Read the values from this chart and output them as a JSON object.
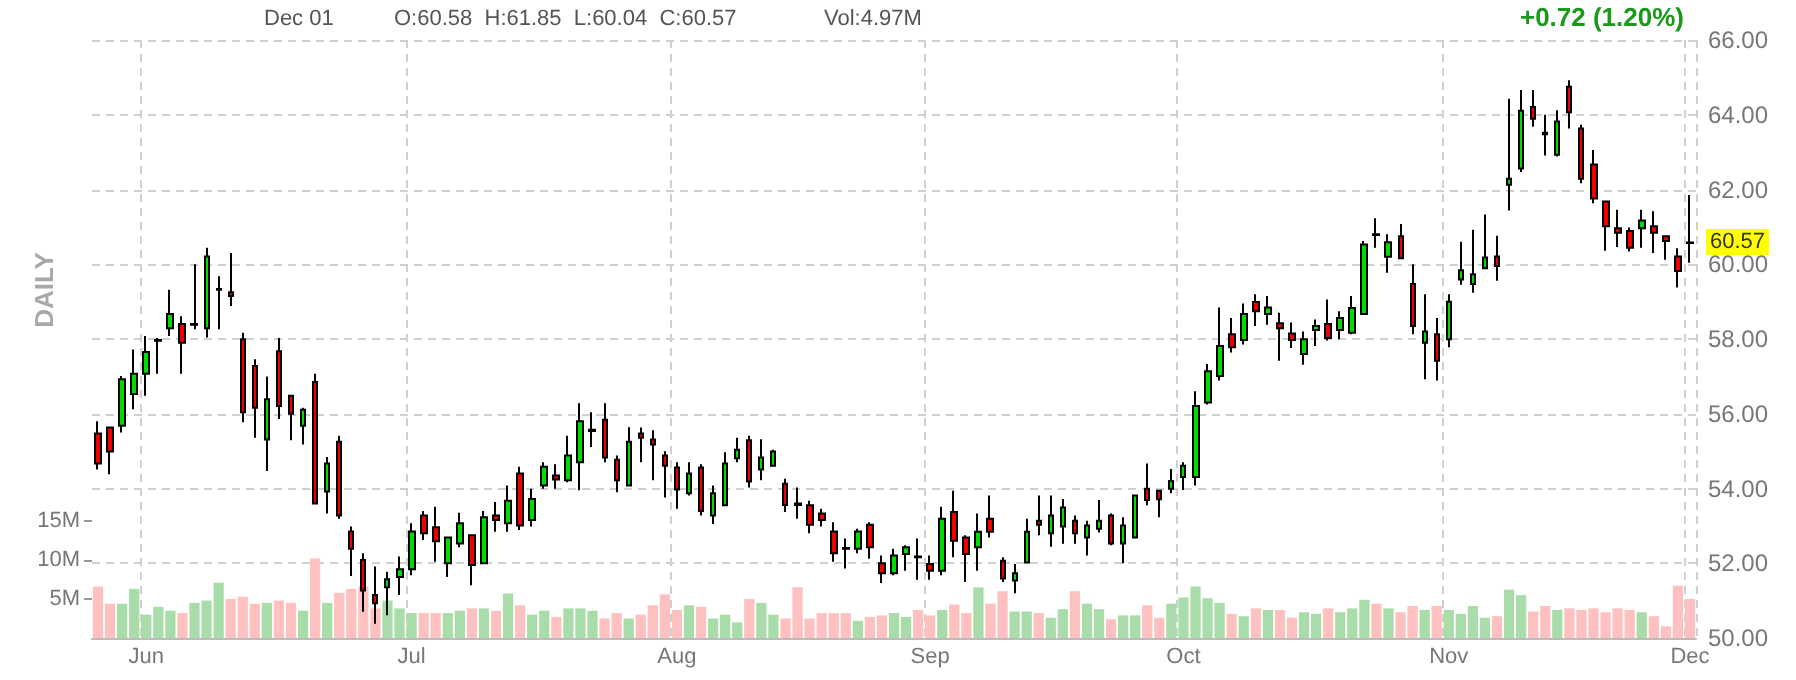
{
  "chart_data": {
    "type": "candlestick",
    "categories": [
      null,
      null,
      null,
      null,
      "Jun",
      null,
      null,
      null,
      null,
      null,
      null,
      null,
      null,
      null,
      null,
      null,
      null,
      null,
      null,
      null,
      null,
      null,
      null,
      null,
      null,
      null,
      "Jul",
      null,
      null,
      null,
      null,
      null,
      null,
      null,
      null,
      null,
      null,
      null,
      null,
      null,
      null,
      null,
      null,
      null,
      null,
      null,
      null,
      null,
      "Aug",
      null,
      null,
      null,
      null,
      null,
      null,
      null,
      null,
      null,
      null,
      null,
      null,
      null,
      null,
      null,
      null,
      null,
      null,
      null,
      null,
      "Sep",
      null,
      null,
      null,
      null,
      null,
      null,
      null,
      null,
      null,
      null,
      null,
      null,
      null,
      null,
      null,
      null,
      null,
      null,
      null,
      null,
      "Oct",
      null,
      null,
      null,
      null,
      null,
      null,
      null,
      null,
      null,
      null,
      null,
      null,
      null,
      null,
      null,
      null,
      null,
      null,
      null,
      null,
      null,
      "Nov",
      null,
      null,
      null,
      null,
      null,
      null,
      null,
      null,
      null,
      null,
      null,
      null,
      null,
      null,
      null,
      null,
      null,
      null,
      null,
      "Dec"
    ],
    "series": [
      {
        "type": "candlestick",
        "ohlc": [
          [
            55.47,
            55.8,
            54.51,
            54.67
          ],
          [
            55.63,
            55.63,
            54.38,
            54.99
          ],
          [
            55.68,
            57.01,
            55.5,
            56.92
          ],
          [
            56.53,
            57.72,
            56.12,
            57.07
          ],
          [
            57.07,
            58.08,
            56.48,
            57.65
          ],
          [
            57.95,
            58.03,
            57.07,
            57.97
          ],
          [
            58.29,
            59.32,
            58.08,
            58.67
          ],
          [
            58.4,
            58.61,
            57.07,
            57.9
          ],
          [
            58.38,
            60,
            58.26,
            58.4
          ],
          [
            58.29,
            60.44,
            58.04,
            60.21
          ],
          [
            59.32,
            59.68,
            58.26,
            59.34
          ],
          [
            59.25,
            60.3,
            58.88,
            59.15
          ],
          [
            57.99,
            58.17,
            55.77,
            56.04
          ],
          [
            57.28,
            57.46,
            55.36,
            56.16
          ],
          [
            55.31,
            57,
            54.47,
            56.39
          ],
          [
            57.67,
            58.03,
            55.86,
            56.21
          ],
          [
            56.48,
            56.48,
            55.29,
            56
          ],
          [
            55.68,
            56.16,
            55.18,
            56.11
          ],
          [
            56.85,
            57.07,
            53.6,
            53.6
          ],
          [
            53.92,
            54.84,
            53.33,
            54.67
          ],
          [
            55.25,
            55.41,
            53.19,
            53.28
          ],
          [
            52.85,
            52.98,
            51.66,
            52.39
          ],
          [
            52.09,
            52.27,
            50.7,
            51.27
          ],
          [
            51.15,
            51.91,
            50.38,
            50.93
          ],
          [
            51.36,
            51.77,
            50.61,
            51.57
          ],
          [
            51.63,
            52.18,
            51.15,
            51.84
          ],
          [
            51.84,
            53.07,
            51.68,
            52.85
          ],
          [
            53.28,
            53.4,
            52.62,
            52.8
          ],
          [
            52.96,
            53.51,
            52.04,
            52.59
          ],
          [
            52,
            52.69,
            51.63,
            52.69
          ],
          [
            52.53,
            53.35,
            52.43,
            53.07
          ],
          [
            52.75,
            52.75,
            51.41,
            51.95
          ],
          [
            52,
            53.4,
            52,
            53.23
          ],
          [
            53.28,
            53.64,
            52.84,
            53.16
          ],
          [
            53.07,
            54.08,
            52.84,
            53.67
          ],
          [
            54.4,
            54.58,
            52.89,
            53.01
          ],
          [
            53.16,
            53.99,
            52.98,
            53.72
          ],
          [
            54.08,
            54.7,
            53.99,
            54.58
          ],
          [
            54.35,
            54.65,
            53.99,
            54.24
          ],
          [
            54.22,
            55.41,
            54.17,
            54.88
          ],
          [
            54.7,
            56.28,
            53.95,
            55.8
          ],
          [
            55.54,
            56.04,
            55.11,
            55.57
          ],
          [
            55.84,
            56.28,
            54.7,
            54.83
          ],
          [
            54.77,
            54.88,
            53.9,
            54.22
          ],
          [
            54.08,
            55.64,
            54.08,
            55.25
          ],
          [
            55.47,
            55.63,
            54.7,
            55.36
          ],
          [
            55.31,
            55.56,
            54.22,
            55.18
          ],
          [
            54.88,
            55,
            53.76,
            54.61
          ],
          [
            54.56,
            54.7,
            53.46,
            53.97
          ],
          [
            53.87,
            54.7,
            53.81,
            54.4
          ],
          [
            54.56,
            54.65,
            53.28,
            53.4
          ],
          [
            53.28,
            54.08,
            53.05,
            53.87
          ],
          [
            53.55,
            54.97,
            53.55,
            54.67
          ],
          [
            54.81,
            55.36,
            54.7,
            55.04
          ],
          [
            55.29,
            55.41,
            54.03,
            54.19
          ],
          [
            54.51,
            55.32,
            54.22,
            54.83
          ],
          [
            54.61,
            55.04,
            54.61,
            54.99
          ],
          [
            54.13,
            54.26,
            53.37,
            53.56
          ],
          [
            53.6,
            54.03,
            53.19,
            53.56
          ],
          [
            53.55,
            53.67,
            52.8,
            53.03
          ],
          [
            53.33,
            53.46,
            52.98,
            53.16
          ],
          [
            52.85,
            53.1,
            52.04,
            52.27
          ],
          [
            52.41,
            52.66,
            51.86,
            52.39
          ],
          [
            52.39,
            52.92,
            52.27,
            52.85
          ],
          [
            53.03,
            53.1,
            52.12,
            52.43
          ],
          [
            52,
            52.21,
            51.47,
            51.73
          ],
          [
            51.73,
            52.39,
            51.68,
            52.21
          ],
          [
            52.25,
            52.48,
            51.8,
            52.43
          ],
          [
            52.18,
            52.66,
            51.56,
            52.16
          ],
          [
            51.98,
            52.21,
            51.56,
            51.8
          ],
          [
            51.8,
            53.51,
            51.68,
            53.19
          ],
          [
            53.37,
            53.94,
            52.16,
            52.6
          ],
          [
            52.69,
            52.75,
            51.5,
            52.25
          ],
          [
            52.43,
            53.33,
            51.8,
            52.84
          ],
          [
            53.19,
            53.81,
            52.69,
            52.84
          ],
          [
            52.07,
            52.16,
            51.5,
            51.59
          ],
          [
            51.54,
            51.98,
            51.2,
            51.73
          ],
          [
            52.02,
            53.19,
            52.02,
            52.84
          ],
          [
            53.14,
            53.81,
            52.75,
            53.03
          ],
          [
            52.8,
            53.81,
            52.44,
            53.28
          ],
          [
            52.98,
            53.72,
            52.52,
            53.49
          ],
          [
            53.14,
            53.28,
            52.52,
            52.8
          ],
          [
            52.69,
            53.14,
            52.21,
            53.01
          ],
          [
            52.92,
            53.69,
            52.82,
            53.14
          ],
          [
            53.28,
            53.33,
            52.48,
            52.53
          ],
          [
            52.53,
            53.23,
            52,
            53.01
          ],
          [
            52.69,
            53.81,
            52.66,
            53.81
          ],
          [
            53.99,
            54.67,
            53.55,
            53.69
          ],
          [
            53.94,
            53.94,
            53.23,
            53.71
          ],
          [
            53.99,
            54.52,
            53.87,
            54.2
          ],
          [
            54.31,
            54.7,
            53.96,
            54.61
          ],
          [
            54.31,
            56.6,
            54.08,
            56.21
          ],
          [
            56.3,
            57.33,
            56.25,
            57.14
          ],
          [
            57.01,
            58.84,
            56.89,
            57.81
          ],
          [
            58.13,
            58.56,
            57.64,
            57.78
          ],
          [
            57.97,
            58.95,
            57.85,
            58.67
          ],
          [
            58.99,
            59.2,
            58.35,
            58.74
          ],
          [
            58.67,
            59.15,
            58.38,
            58.84
          ],
          [
            58.42,
            58.7,
            57.42,
            58.29
          ],
          [
            58.15,
            58.44,
            57.76,
            57.97
          ],
          [
            57.6,
            58.2,
            57.31,
            57.99
          ],
          [
            58.24,
            58.52,
            57.81,
            58.35
          ],
          [
            58.4,
            59.06,
            57.96,
            58.03
          ],
          [
            58.24,
            58.74,
            57.99,
            58.56
          ],
          [
            58.17,
            59.15,
            58.13,
            58.83
          ],
          [
            58.67,
            60.62,
            58.67,
            60.53
          ],
          [
            60.8,
            61.23,
            60.44,
            60.78
          ],
          [
            60.2,
            60.8,
            59.77,
            60.59
          ],
          [
            60.75,
            61.08,
            60.16,
            60.16
          ],
          [
            59.47,
            60,
            58.13,
            58.35
          ],
          [
            57.9,
            59.2,
            56.92,
            58.2
          ],
          [
            58.13,
            58.56,
            56.89,
            57.42
          ],
          [
            57.99,
            59.2,
            57.78,
            59
          ],
          [
            59.59,
            60.6,
            59.45,
            59.84
          ],
          [
            59.47,
            60.92,
            59.24,
            59.73
          ],
          [
            59.89,
            61.33,
            59.89,
            60.18
          ],
          [
            60.21,
            60.76,
            59.56,
            59.95
          ],
          [
            62.13,
            64.43,
            61.44,
            62.29
          ],
          [
            62.56,
            64.66,
            62.47,
            64.11
          ],
          [
            64.21,
            64.66,
            63.68,
            63.89
          ],
          [
            63.52,
            64,
            62.91,
            63.48
          ],
          [
            62.93,
            64.12,
            62.88,
            63.82
          ],
          [
            64.75,
            64.92,
            63.63,
            64.07
          ],
          [
            63.63,
            63.73,
            62.17,
            62.29
          ],
          [
            62.67,
            63.06,
            61.63,
            61.76
          ],
          [
            61.68,
            61.68,
            60.36,
            61.02
          ],
          [
            60.96,
            61.46,
            60.46,
            60.84
          ],
          [
            60.89,
            60.98,
            60.34,
            60.44
          ],
          [
            60.96,
            61.46,
            60.44,
            61.17
          ],
          [
            61.02,
            61.42,
            60.3,
            60.84
          ],
          [
            60.75,
            60.75,
            60.12,
            60.62
          ],
          [
            60.21,
            60.43,
            59.38,
            59.82
          ],
          [
            60.58,
            61.85,
            60.04,
            60.57
          ]
        ],
        "colors": [
          "#ee0000",
          "#ee0000",
          "#00dd00",
          "#00dd00",
          "#00dd00",
          "#00dd00",
          "#00dd00",
          "#ee0000",
          "#00dd00",
          "#00dd00",
          "#00dd00",
          "#ee0000",
          "#ee0000",
          "#ee0000",
          "#00dd00",
          "#ee0000",
          "#ee0000",
          "#00dd00",
          "#ee0000",
          "#00dd00",
          "#ee0000",
          "#ee0000",
          "#ee0000",
          "#ee0000",
          "#00dd00",
          "#00dd00",
          "#00dd00",
          "#ee0000",
          "#ee0000",
          "#00dd00",
          "#00dd00",
          "#ee0000",
          "#00dd00",
          "#ee0000",
          "#00dd00",
          "#ee0000",
          "#00dd00",
          "#00dd00",
          "#ee0000",
          "#00dd00",
          "#00dd00",
          "#00dd00",
          "#ee0000",
          "#ee0000",
          "#00dd00",
          "#ee0000",
          "#ee0000",
          "#ee0000",
          "#ee0000",
          "#00dd00",
          "#ee0000",
          "#00dd00",
          "#00dd00",
          "#00dd00",
          "#ee0000",
          "#00dd00",
          "#00dd00",
          "#ee0000",
          "#ee0000",
          "#ee0000",
          "#ee0000",
          "#ee0000",
          "#ee0000",
          "#00dd00",
          "#ee0000",
          "#ee0000",
          "#00dd00",
          "#00dd00",
          "#ee0000",
          "#ee0000",
          "#00dd00",
          "#ee0000",
          "#ee0000",
          "#00dd00",
          "#ee0000",
          "#ee0000",
          "#00dd00",
          "#00dd00",
          "#ee0000",
          "#00dd00",
          "#00dd00",
          "#ee0000",
          "#00dd00",
          "#00dd00",
          "#ee0000",
          "#00dd00",
          "#00dd00",
          "#ee0000",
          "#ee0000",
          "#00dd00",
          "#00dd00",
          "#00dd00",
          "#00dd00",
          "#00dd00",
          "#ee0000",
          "#00dd00",
          "#ee0000",
          "#00dd00",
          "#ee0000",
          "#ee0000",
          "#00dd00",
          "#00dd00",
          "#ee0000",
          "#00dd00",
          "#00dd00",
          "#00dd00",
          "#ee0000",
          "#00dd00",
          "#ee0000",
          "#ee0000",
          "#00dd00",
          "#ee0000",
          "#00dd00",
          "#00dd00",
          "#00dd00",
          "#00dd00",
          "#ee0000",
          "#00dd00",
          "#00dd00",
          "#ee0000",
          "#ee0000",
          "#00dd00",
          "#ee0000",
          "#ee0000",
          "#ee0000",
          "#ee0000",
          "#ee0000",
          "#ee0000",
          "#00dd00",
          "#ee0000",
          "#ee0000",
          "#ee0000",
          "#ee0000"
        ]
      },
      {
        "type": "bar",
        "axis": "y2",
        "values": [
          6.6,
          4.4,
          4.4,
          6.3,
          3.0,
          4.0,
          3.5,
          3.2,
          4.5,
          4.8,
          7.1,
          5.0,
          5.3,
          4.4,
          4.5,
          4.8,
          4.5,
          3.5,
          10.2,
          4.5,
          5.8,
          6.3,
          6.6,
          3.8,
          4.8,
          3.8,
          3.2,
          3.2,
          3.2,
          3.2,
          3.5,
          3.8,
          3.8,
          3.5,
          5.7,
          4.2,
          3.0,
          3.5,
          2.7,
          3.8,
          3.8,
          3.5,
          2.5,
          3.2,
          2.5,
          3.0,
          4.2,
          5.6,
          3.6,
          4.2,
          4.0,
          2.5,
          3.0,
          2.0,
          5.0,
          4.5,
          3.0,
          2.5,
          6.5,
          2.5,
          3.2,
          3.2,
          3.2,
          2.2,
          2.7,
          2.9,
          3.2,
          2.7,
          3.6,
          2.9,
          3.6,
          4.3,
          3.2,
          6.5,
          4.4,
          6.0,
          3.4,
          3.4,
          3.2,
          2.6,
          3.7,
          6.0,
          4.4,
          3.7,
          2.4,
          2.9,
          2.9,
          4.2,
          2.6,
          4.4,
          5.2,
          6.6,
          5.1,
          4.5,
          3.1,
          2.8,
          3.8,
          3.6,
          3.6,
          2.6,
          3.3,
          3.1,
          3.8,
          3.3,
          3.8,
          4.9,
          4.4,
          3.8,
          3.3,
          4.1,
          3.6,
          4.1,
          3.6,
          3.1,
          4.1,
          2.6,
          2.8,
          6.2,
          5.5,
          3.4,
          4.1,
          3.6,
          3.8,
          3.6,
          3.8,
          3.3,
          3.8,
          3.6,
          3.3,
          2.8,
          1.5,
          6.7,
          5.0
        ],
        "colors": [
          "#ffc0c0",
          "#ffc0c0",
          "#a8dca8",
          "#a8dca8",
          "#a8dca8",
          "#a8dca8",
          "#a8dca8",
          "#ffc0c0",
          "#a8dca8",
          "#a8dca8",
          "#a8dca8",
          "#ffc0c0",
          "#ffc0c0",
          "#ffc0c0",
          "#a8dca8",
          "#ffc0c0",
          "#ffc0c0",
          "#a8dca8",
          "#ffc0c0",
          "#a8dca8",
          "#ffc0c0",
          "#ffc0c0",
          "#ffc0c0",
          "#ffc0c0",
          "#a8dca8",
          "#a8dca8",
          "#a8dca8",
          "#ffc0c0",
          "#ffc0c0",
          "#a8dca8",
          "#a8dca8",
          "#ffc0c0",
          "#a8dca8",
          "#ffc0c0",
          "#a8dca8",
          "#ffc0c0",
          "#a8dca8",
          "#a8dca8",
          "#ffc0c0",
          "#a8dca8",
          "#a8dca8",
          "#a8dca8",
          "#ffc0c0",
          "#ffc0c0",
          "#a8dca8",
          "#ffc0c0",
          "#ffc0c0",
          "#ffc0c0",
          "#ffc0c0",
          "#a8dca8",
          "#ffc0c0",
          "#a8dca8",
          "#a8dca8",
          "#a8dca8",
          "#ffc0c0",
          "#a8dca8",
          "#a8dca8",
          "#ffc0c0",
          "#ffc0c0",
          "#ffc0c0",
          "#ffc0c0",
          "#ffc0c0",
          "#ffc0c0",
          "#a8dca8",
          "#ffc0c0",
          "#ffc0c0",
          "#a8dca8",
          "#a8dca8",
          "#ffc0c0",
          "#ffc0c0",
          "#a8dca8",
          "#ffc0c0",
          "#ffc0c0",
          "#a8dca8",
          "#ffc0c0",
          "#ffc0c0",
          "#a8dca8",
          "#a8dca8",
          "#ffc0c0",
          "#a8dca8",
          "#a8dca8",
          "#ffc0c0",
          "#a8dca8",
          "#a8dca8",
          "#ffc0c0",
          "#a8dca8",
          "#a8dca8",
          "#ffc0c0",
          "#ffc0c0",
          "#a8dca8",
          "#a8dca8",
          "#a8dca8",
          "#a8dca8",
          "#a8dca8",
          "#ffc0c0",
          "#a8dca8",
          "#ffc0c0",
          "#a8dca8",
          "#ffc0c0",
          "#ffc0c0",
          "#a8dca8",
          "#a8dca8",
          "#ffc0c0",
          "#a8dca8",
          "#a8dca8",
          "#a8dca8",
          "#ffc0c0",
          "#a8dca8",
          "#ffc0c0",
          "#ffc0c0",
          "#a8dca8",
          "#ffc0c0",
          "#a8dca8",
          "#a8dca8",
          "#a8dca8",
          "#a8dca8",
          "#ffc0c0",
          "#a8dca8",
          "#a8dca8",
          "#ffc0c0",
          "#ffc0c0",
          "#a8dca8",
          "#ffc0c0",
          "#ffc0c0",
          "#ffc0c0",
          "#ffc0c0",
          "#ffc0c0",
          "#ffc0c0",
          "#a8dca8",
          "#ffc0c0",
          "#ffc0c0",
          "#ffc0c0",
          "#ffc0c0"
        ]
      }
    ],
    "ylim": [
      50,
      66
    ],
    "yticks": [
      {
        "value": 50,
        "label": "50.00"
      },
      {
        "value": 52,
        "label": "52.00"
      },
      {
        "value": 54,
        "label": "54.00"
      },
      {
        "value": 56,
        "label": "56.00"
      },
      {
        "value": 58,
        "label": "58.00"
      },
      {
        "value": 60,
        "label": "60.00"
      },
      {
        "value": 62,
        "label": "62.00"
      },
      {
        "value": 64,
        "label": "64.00"
      },
      {
        "value": 66,
        "label": "66.00"
      }
    ],
    "y2lim": [
      0,
      76.7
    ],
    "y2ticks": [
      {
        "value": 5,
        "label": "5M"
      },
      {
        "value": 10,
        "label": "10M"
      },
      {
        "value": 15,
        "label": "15M"
      }
    ],
    "grid": true,
    "annotations": [
      "DAILY",
      "Dec 01",
      "O:60.58  H:61.85  L:60.04  C:60.57",
      "Vol:4.97M",
      "+0.72 (1.20%)",
      "60.57"
    ]
  }
}
